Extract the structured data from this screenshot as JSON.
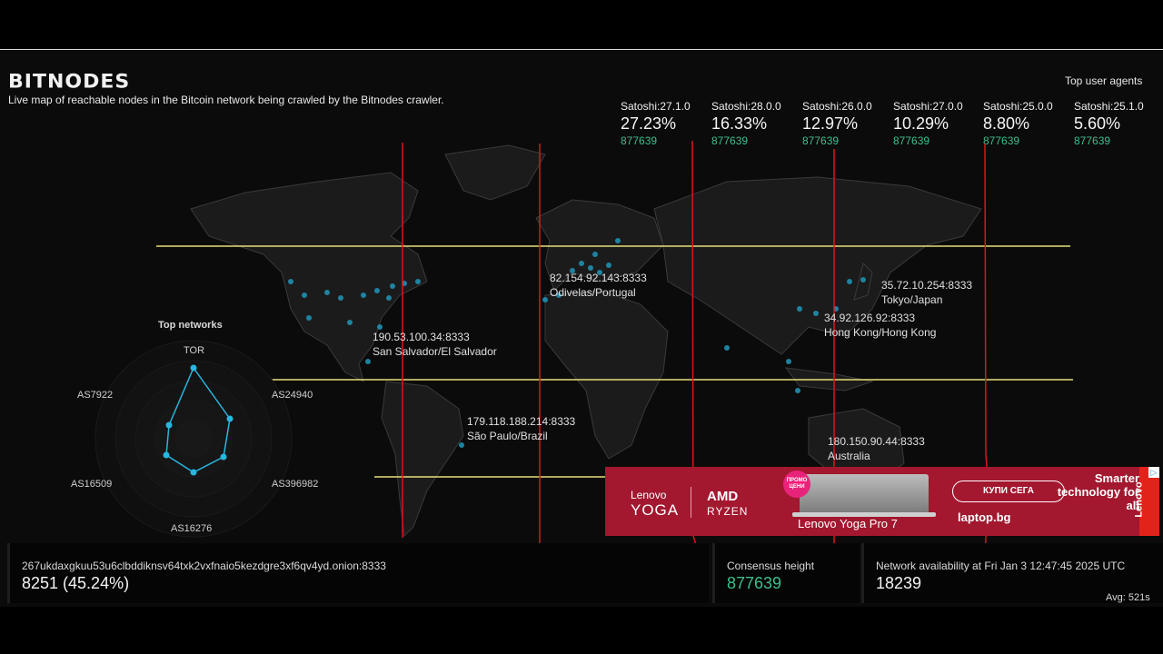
{
  "header": {
    "logo": "BITNODES",
    "tagline": "Live map of reachable nodes in the Bitcoin network being crawled by the Bitnodes crawler."
  },
  "user_agents": {
    "title": "Top user agents",
    "items": [
      {
        "name": "Satoshi:27.1.0",
        "percent": "27.23%",
        "height": "877639"
      },
      {
        "name": "Satoshi:28.0.0",
        "percent": "16.33%",
        "height": "877639"
      },
      {
        "name": "Satoshi:26.0.0",
        "percent": "12.97%",
        "height": "877639"
      },
      {
        "name": "Satoshi:27.0.0",
        "percent": "10.29%",
        "height": "877639"
      },
      {
        "name": "Satoshi:25.0.0",
        "percent": "8.80%",
        "height": "877639"
      },
      {
        "name": "Satoshi:25.1.0",
        "percent": "5.60%",
        "height": "877639"
      }
    ]
  },
  "map": {
    "nodes": [
      {
        "address": "82.154.92.143:8333",
        "location": "Odivelas/Portugal"
      },
      {
        "address": "35.72.10.254:8333",
        "location": "Tokyo/Japan"
      },
      {
        "address": "34.92.126.92:8333",
        "location": "Hong Kong/Hong Kong"
      },
      {
        "address": "190.53.100.34:8333",
        "location": "San Salvador/El Salvador"
      },
      {
        "address": "179.118.188.214:8333",
        "location": "São Paulo/Brazil"
      },
      {
        "address": "180.150.90.44:8333",
        "location": "Australia"
      }
    ],
    "colors": {
      "land": "#1b1b1b",
      "border": "#3a3a3a",
      "dot": "#1f8fb0",
      "overlay_h": "#e6e07a",
      "overlay_v": "#e01515"
    }
  },
  "networks": {
    "title": "Top networks",
    "axes": [
      "TOR",
      "AS24940",
      "AS396982",
      "AS16276",
      "AS16509",
      "AS7922"
    ],
    "color": "#29b6e0"
  },
  "ad": {
    "brand_top": "Lenovo",
    "brand_bottom": "YOGA",
    "cpu_top": "AMD",
    "cpu_bottom": "RYZEN",
    "promo": "ПРОМО ЦЕНИ",
    "product": "Lenovo Yoga Pro 7",
    "cta": "КУПИ СЕГА",
    "site": "laptop.bg",
    "slogan": "Smarter technology for all",
    "vertical_logo": "Lenovo",
    "adchoice_icon": "▷",
    "bg_color": "#a3172f"
  },
  "stats": {
    "node": {
      "label": "267ukdaxgkuu53u6clbddiknsv64txk2vxfnaio5kezdgre3xf6qv4yd.onion:8333",
      "value": "8251 (45.24%)"
    },
    "consensus": {
      "label": "Consensus height",
      "value": "877639"
    },
    "availability": {
      "label": "Network availability at Fri Jan 3 12:47:45 2025 UTC",
      "value": "18239"
    },
    "avg": "Avg: 521s"
  }
}
